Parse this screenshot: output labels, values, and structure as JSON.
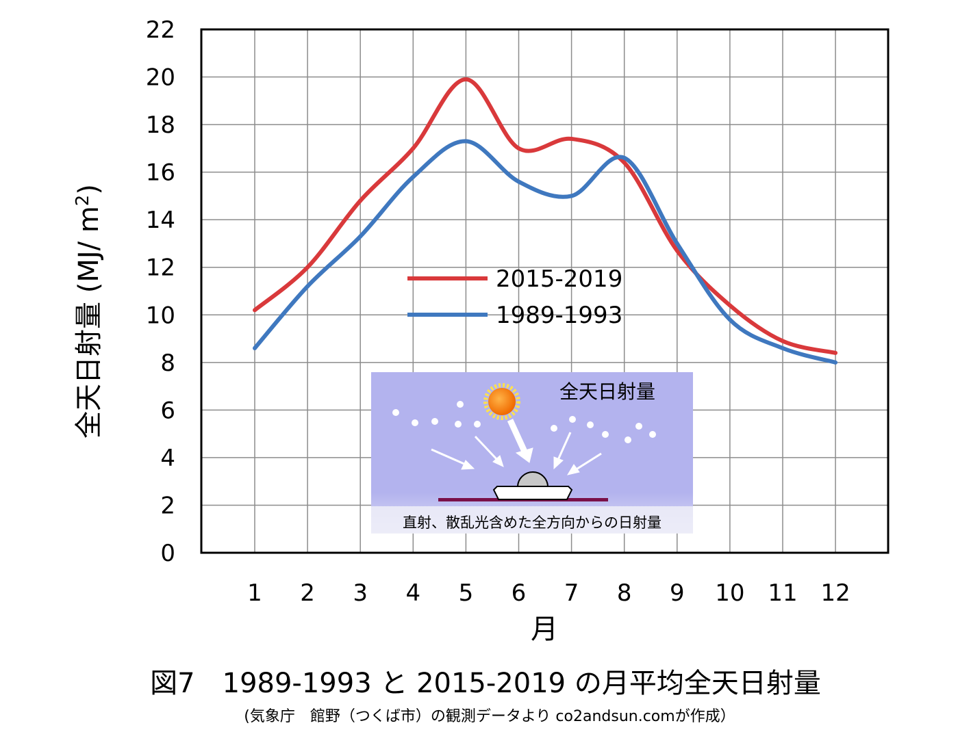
{
  "chart_data": {
    "type": "line",
    "x": [
      1,
      2,
      3,
      4,
      5,
      6,
      7,
      8,
      9,
      10,
      11,
      12
    ],
    "xlabel": "月",
    "ylabel": "全天日射量 (MJ/ m",
    "ylabel_sup": "2",
    "ylabel_close": ")",
    "ylim": [
      0,
      22
    ],
    "yticks": [
      0,
      2,
      4,
      6,
      8,
      10,
      12,
      14,
      16,
      18,
      20,
      22
    ],
    "grid": true,
    "legend_position": "center",
    "series": [
      {
        "name": "2015-2019",
        "color": "#d9393b",
        "values": [
          10.2,
          12.0,
          14.8,
          17.0,
          19.9,
          17.0,
          17.4,
          16.4,
          12.7,
          10.4,
          8.9,
          8.4
        ]
      },
      {
        "name": "1989-1993",
        "color": "#3f78bf",
        "values": [
          8.6,
          11.2,
          13.3,
          15.8,
          17.3,
          15.6,
          15.0,
          16.6,
          13.0,
          9.8,
          8.6,
          8.0
        ]
      }
    ]
  },
  "inset": {
    "title": "全天日射量",
    "note": "直射、散乱光含めた全方向からの日射量"
  },
  "caption": {
    "title": "図7　1989-1993 と 2015-2019 の月平均全天日射量",
    "source": "(気象庁　館野（つくば市）の観測データより co2andsun.comが作成）"
  }
}
